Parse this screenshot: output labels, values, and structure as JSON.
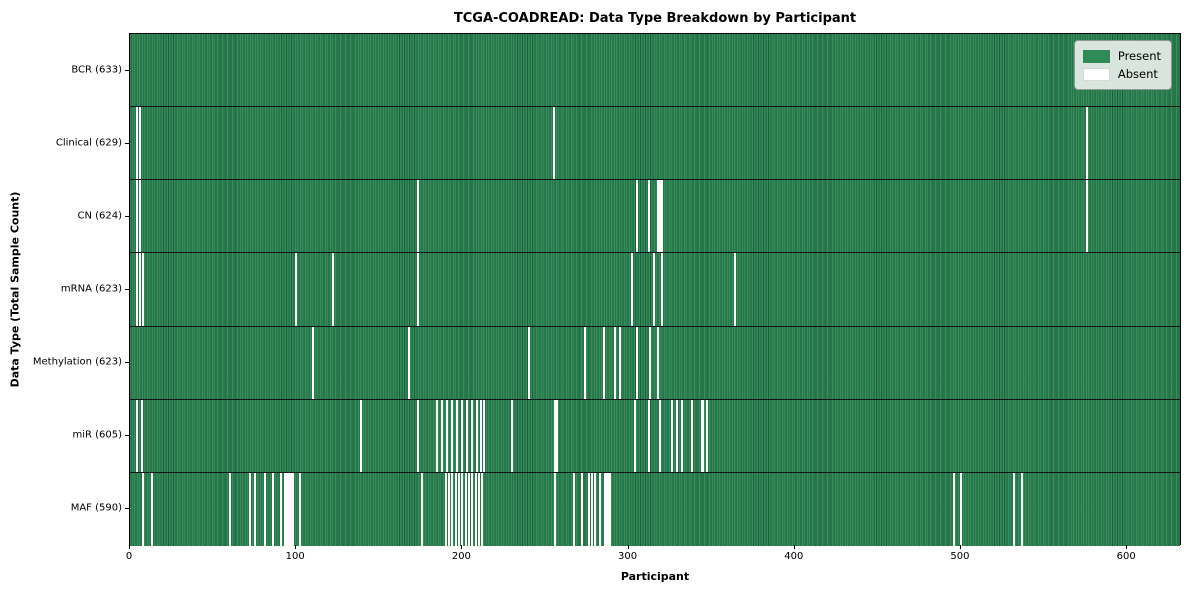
{
  "chart_data": {
    "type": "heatmap",
    "title": "TCGA-COADREAD: Data Type Breakdown by Participant",
    "xlabel": "Participant",
    "ylabel": "Data Type (Total Sample Count)",
    "x_ticks": [
      0,
      100,
      200,
      300,
      400,
      500,
      600
    ],
    "x_range": [
      0,
      633
    ],
    "grid": false,
    "legend_position": "upper-right",
    "colors": {
      "present": "#2e8b57",
      "absent": "#ffffff",
      "bar_edge": "#1f5c3a",
      "row_separator": "#141414"
    },
    "legend": [
      {
        "label": "Present",
        "color": "#2e8b57"
      },
      {
        "label": "Absent",
        "color": "#ffffff"
      }
    ],
    "rows": [
      {
        "label": "BCR (633)",
        "data_type": "BCR",
        "total_sample_count": 633,
        "absent_participants": []
      },
      {
        "label": "Clinical (629)",
        "data_type": "Clinical",
        "total_sample_count": 629,
        "absent_participants": [
          4,
          6,
          255,
          576
        ]
      },
      {
        "label": "CN (624)",
        "data_type": "CN",
        "total_sample_count": 624,
        "absent_participants": [
          4,
          6,
          173,
          305,
          312,
          318,
          319,
          320,
          576
        ]
      },
      {
        "label": "mRNA (623)",
        "data_type": "mRNA",
        "total_sample_count": 623,
        "absent_participants": [
          4,
          6,
          8,
          100,
          122,
          173,
          302,
          315,
          320,
          364
        ]
      },
      {
        "label": "Methylation (623)",
        "data_type": "Methylation",
        "total_sample_count": 623,
        "absent_participants": [
          110,
          168,
          240,
          274,
          285,
          292,
          295,
          305,
          313,
          318
        ]
      },
      {
        "label": "miR (605)",
        "data_type": "miR",
        "total_sample_count": 605,
        "absent_participants": [
          4,
          7,
          139,
          173,
          185,
          188,
          191,
          194,
          197,
          200,
          203,
          206,
          209,
          211,
          213,
          230,
          256,
          257,
          304,
          312,
          319,
          326,
          329,
          332,
          338,
          344,
          345,
          347
        ]
      },
      {
        "label": "MAF (590)",
        "data_type": "MAF",
        "total_sample_count": 590,
        "absent_participants": [
          8,
          13,
          60,
          72,
          75,
          81,
          86,
          91,
          93,
          94,
          95,
          96,
          97,
          98,
          102,
          176,
          190,
          192,
          194,
          196,
          198,
          200,
          202,
          204,
          206,
          208,
          210,
          212,
          256,
          267,
          272,
          276,
          278,
          280,
          283,
          286,
          287,
          288,
          289,
          496,
          500,
          532,
          537
        ]
      }
    ]
  }
}
